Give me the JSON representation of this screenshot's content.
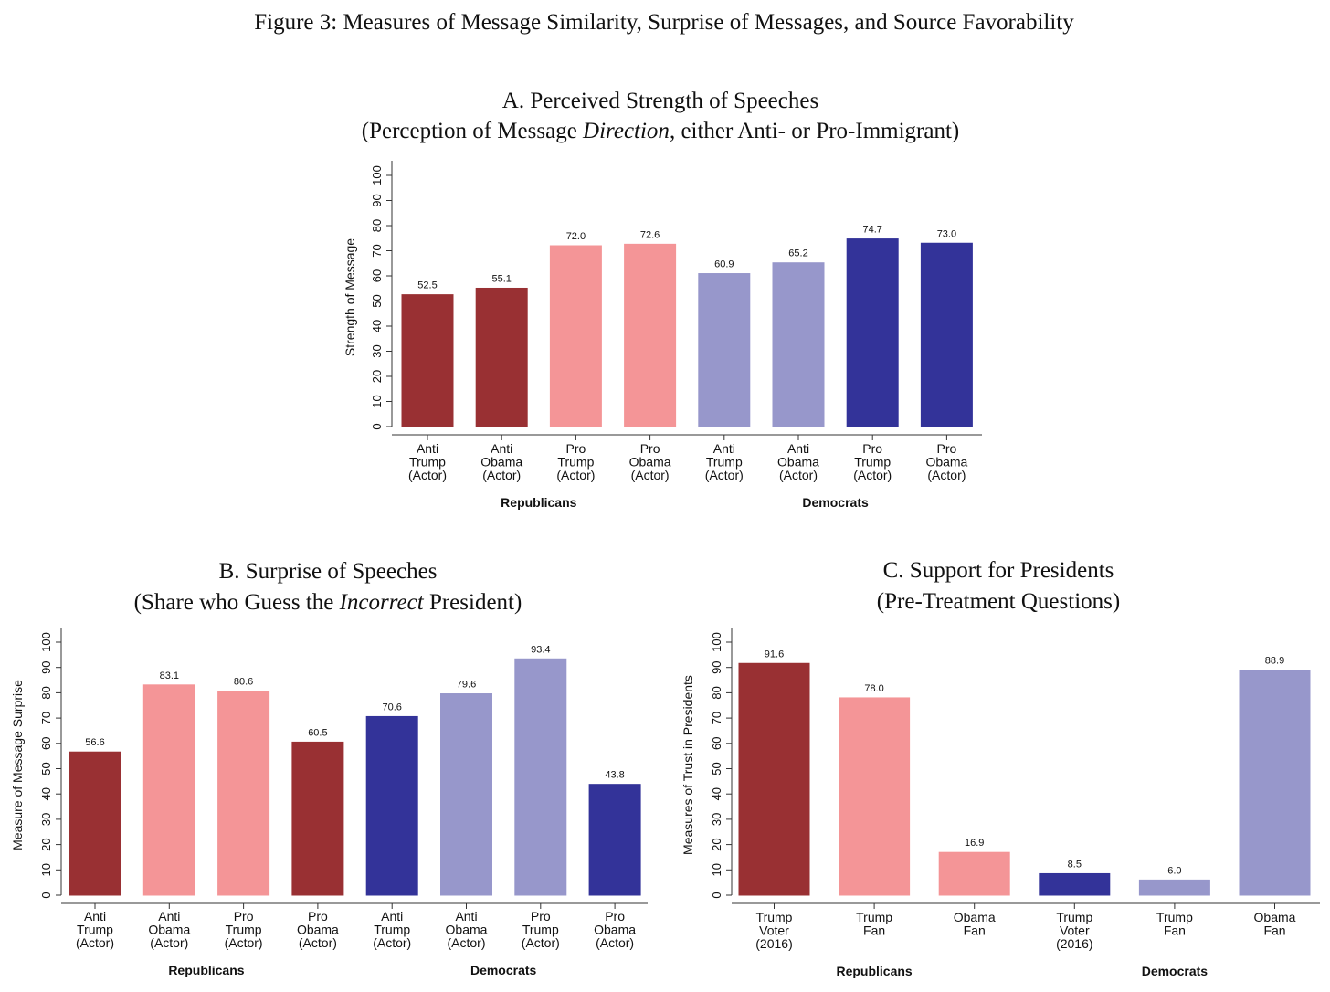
{
  "figure_title": "Figure 3: Measures of Message Similarity, Surprise of Messages, and Source Favorability",
  "colors": {
    "dark_red": "#993033",
    "light_red": "#f49597",
    "dark_blue": "#333399",
    "light_blue": "#9797cb"
  },
  "chart_data": [
    {
      "id": "A",
      "type": "bar",
      "title_line1": "A. Perceived Strength of Speeches",
      "title_line2_pre": "(Perception of Message ",
      "title_line2_em": "Direction",
      "title_line2_post": ", either Anti- or Pro-Immigrant)",
      "ylabel": "Strength of Message",
      "ylim": [
        0,
        100
      ],
      "yticks": [
        "0",
        "10",
        "20",
        "30",
        "40",
        "50",
        "60",
        "70",
        "80",
        "90",
        "100"
      ],
      "categories": [
        [
          "Anti",
          "Trump",
          "(Actor)"
        ],
        [
          "Anti",
          "Obama",
          "(Actor)"
        ],
        [
          "Pro",
          "Trump",
          "(Actor)"
        ],
        [
          "Pro",
          "Obama",
          "(Actor)"
        ],
        [
          "Anti",
          "Trump",
          "(Actor)"
        ],
        [
          "Anti",
          "Obama",
          "(Actor)"
        ],
        [
          "Pro",
          "Trump",
          "(Actor)"
        ],
        [
          "Pro",
          "Obama",
          "(Actor)"
        ]
      ],
      "values": [
        52.5,
        55.1,
        72.0,
        72.6,
        60.9,
        65.2,
        74.7,
        73.0
      ],
      "value_labels": [
        "52.5",
        "55.1",
        "72.0",
        "72.6",
        "60.9",
        "65.2",
        "74.7",
        "73.0"
      ],
      "bar_colors": [
        "dark_red",
        "dark_red",
        "light_red",
        "light_red",
        "light_blue",
        "light_blue",
        "dark_blue",
        "dark_blue"
      ],
      "groups": [
        {
          "label": "Republicans",
          "from": 0,
          "to": 3
        },
        {
          "label": "Democrats",
          "from": 4,
          "to": 7
        }
      ]
    },
    {
      "id": "B",
      "type": "bar",
      "title_line1": "B. Surprise of Speeches",
      "title_line2_pre": "(Share who Guess the ",
      "title_line2_em": "Incorrect",
      "title_line2_post": " President)",
      "ylabel": "Measure of Message Surprise",
      "ylim": [
        0,
        100
      ],
      "yticks": [
        "0",
        "10",
        "20",
        "30",
        "40",
        "50",
        "60",
        "70",
        "80",
        "90",
        "100"
      ],
      "categories": [
        [
          "Anti",
          "Trump",
          "(Actor)"
        ],
        [
          "Anti",
          "Obama",
          "(Actor)"
        ],
        [
          "Pro",
          "Trump",
          "(Actor)"
        ],
        [
          "Pro",
          "Obama",
          "(Actor)"
        ],
        [
          "Anti",
          "Trump",
          "(Actor)"
        ],
        [
          "Anti",
          "Obama",
          "(Actor)"
        ],
        [
          "Pro",
          "Trump",
          "(Actor)"
        ],
        [
          "Pro",
          "Obama",
          "(Actor)"
        ]
      ],
      "values": [
        56.6,
        83.1,
        80.6,
        60.5,
        70.6,
        79.6,
        93.4,
        43.8
      ],
      "value_labels": [
        "56.6",
        "83.1",
        "80.6",
        "60.5",
        "70.6",
        "79.6",
        "93.4",
        "43.8"
      ],
      "bar_colors": [
        "dark_red",
        "light_red",
        "light_red",
        "dark_red",
        "dark_blue",
        "light_blue",
        "light_blue",
        "dark_blue"
      ],
      "groups": [
        {
          "label": "Republicans",
          "from": 0,
          "to": 3
        },
        {
          "label": "Democrats",
          "from": 4,
          "to": 7
        }
      ]
    },
    {
      "id": "C",
      "type": "bar",
      "title_line1": "C. Support for Presidents",
      "title_line2_pre": "(Pre-Treatment Questions)",
      "title_line2_em": "",
      "title_line2_post": "",
      "ylabel": "Measures of Trust in Presidents",
      "ylim": [
        0,
        100
      ],
      "yticks": [
        "0",
        "10",
        "20",
        "30",
        "40",
        "50",
        "60",
        "70",
        "80",
        "90",
        "100"
      ],
      "categories": [
        [
          "Trump",
          "Voter",
          "(2016)"
        ],
        [
          "Trump",
          "Fan"
        ],
        [
          "Obama",
          "Fan"
        ],
        [
          "Trump",
          "Voter",
          "(2016)"
        ],
        [
          "Trump",
          "Fan"
        ],
        [
          "Obama",
          "Fan"
        ]
      ],
      "values": [
        91.6,
        78.0,
        16.9,
        8.5,
        6.0,
        88.9
      ],
      "value_labels": [
        "91.6",
        "78.0",
        "16.9",
        "8.5",
        "6.0",
        "88.9"
      ],
      "bar_colors": [
        "dark_red",
        "light_red",
        "light_red",
        "dark_blue",
        "light_blue",
        "light_blue"
      ],
      "groups": [
        {
          "label": "Republicans",
          "from": 0,
          "to": 2
        },
        {
          "label": "Democrats",
          "from": 3,
          "to": 5
        }
      ]
    }
  ]
}
